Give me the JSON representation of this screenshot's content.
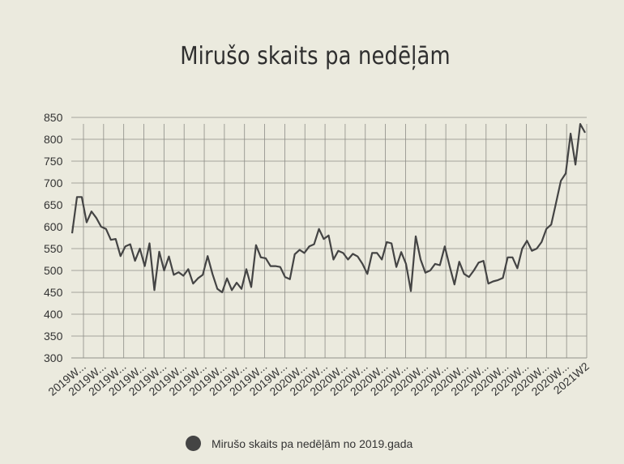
{
  "title": "Mirušo skaits pa nedēļām",
  "legend": {
    "label": "Mirušo skaits pa nedēļām no 2019.gada"
  },
  "colors": {
    "background": "#ebeade",
    "grid": "#8c8c86",
    "line": "#444444"
  },
  "chart_data": {
    "type": "line",
    "title": "Mirušo skaits pa nedēļām",
    "xlabel": "",
    "ylabel": "",
    "ylim": [
      300,
      850
    ],
    "yticks": [
      300,
      350,
      400,
      450,
      500,
      550,
      600,
      650,
      700,
      750,
      800,
      850
    ],
    "grid": true,
    "legend_position": "bottom",
    "x_tick_labels": [
      "2019W...",
      "2019W...",
      "2019W...",
      "2019W...",
      "2019W...",
      "2019W...",
      "2019W...",
      "2019W...",
      "2019W...",
      "2019W...",
      "2019W...",
      "2020W...",
      "2020W...",
      "2020W...",
      "2020W...",
      "2020W...",
      "2020W...",
      "2020W...",
      "2020W...",
      "2020W...",
      "2020W...",
      "2020W...",
      "2020W...",
      "2020W...",
      "2020W...",
      "2021W2"
    ],
    "series": [
      {
        "name": "Mirušo skaits pa nedēļām no 2019.gada",
        "values": [
          585,
          668,
          668,
          610,
          635,
          620,
          600,
          595,
          570,
          572,
          533,
          555,
          560,
          522,
          550,
          510,
          562,
          455,
          543,
          500,
          532,
          490,
          496,
          488,
          503,
          470,
          482,
          490,
          533,
          492,
          458,
          450,
          482,
          455,
          472,
          458,
          503,
          462,
          558,
          530,
          528,
          510,
          510,
          508,
          485,
          480,
          537,
          547,
          540,
          555,
          560,
          595,
          572,
          580,
          525,
          545,
          540,
          525,
          538,
          532,
          515,
          492,
          540,
          540,
          525,
          565,
          562,
          508,
          542,
          515,
          453,
          578,
          525,
          495,
          500,
          515,
          512,
          555,
          510,
          468,
          520,
          492,
          485,
          500,
          518,
          522,
          470,
          475,
          478,
          483,
          530,
          530,
          505,
          550,
          568,
          545,
          550,
          565,
          595,
          605,
          655,
          705,
          722,
          813,
          742,
          835,
          815
        ]
      }
    ]
  }
}
